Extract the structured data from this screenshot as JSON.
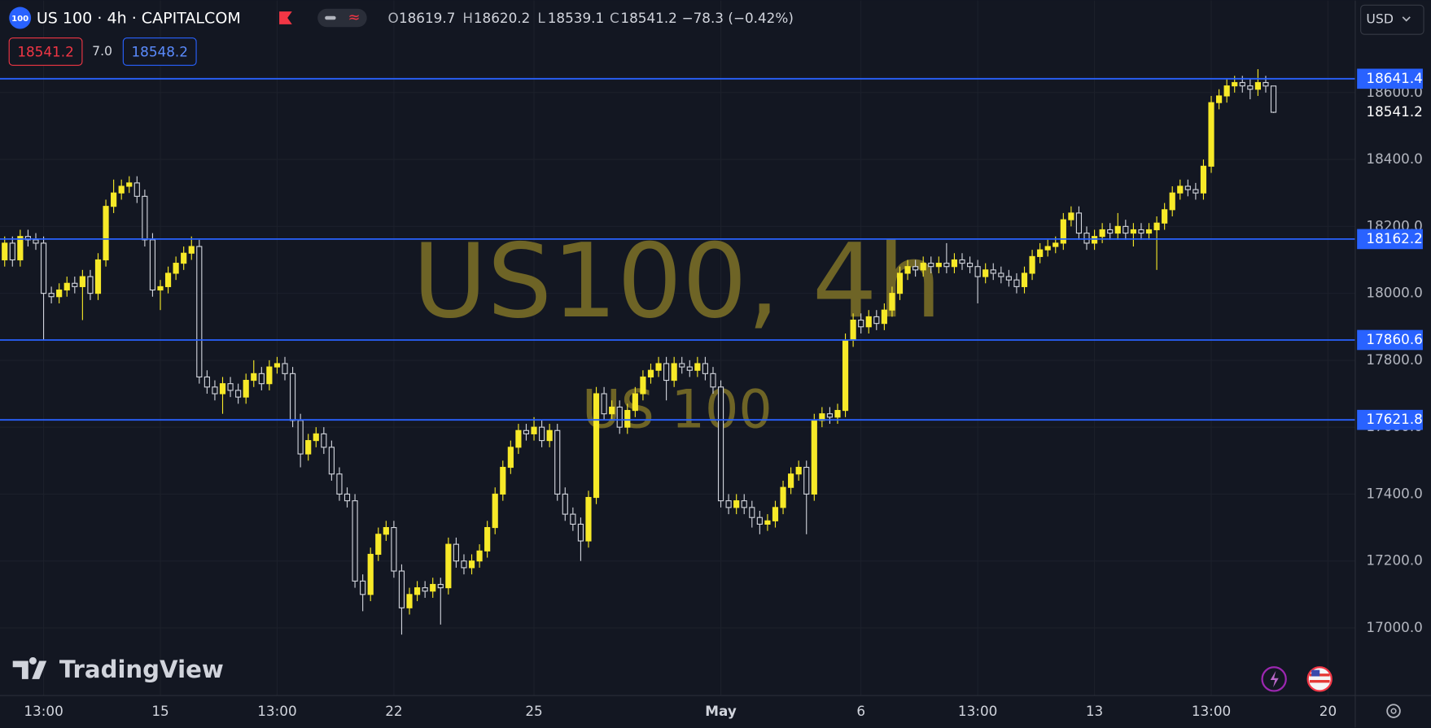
{
  "header": {
    "symbol_badge": "100",
    "symbol_title": "US 100 · 4h · CAPITALCOM",
    "ohlc_labels": [
      "O",
      "H",
      "L",
      "C"
    ],
    "change": "−78.3 (−0.42%)",
    "bid": 18541.2,
    "spread": "7.0",
    "ask": 18548.2,
    "currency": "USD",
    "brand": "TradingView"
  },
  "chart_data": {
    "type": "candlestick",
    "watermark_title": "US100, 4h",
    "watermark_subtitle": "US 100",
    "up_color": "#f7e928",
    "down_color": "#d1d4dc",
    "hline_color": "#2962ff",
    "grid": true,
    "open": [
      18100,
      18150,
      18100,
      18170,
      18160,
      18150,
      18000,
      17990,
      18010,
      18030,
      18020,
      18050,
      18000,
      18100,
      18260,
      18300,
      18320,
      18330,
      18290,
      18160,
      18010,
      18020,
      18060,
      18090,
      18120,
      18140,
      17750,
      17720,
      17700,
      17730,
      17710,
      17690,
      17740,
      17760,
      17730,
      17780,
      17790,
      17760,
      17620,
      17520,
      17560,
      17580,
      17540,
      17460,
      17400,
      17380,
      17140,
      17100,
      17220,
      17280,
      17300,
      17170,
      17060,
      17100,
      17120,
      17110,
      17130,
      17120,
      17250,
      17200,
      17180,
      17200,
      17230,
      17300,
      17400,
      17480,
      17540,
      17590,
      17580,
      17600,
      17560,
      17590,
      17400,
      17340,
      17310,
      17260,
      17390,
      17700,
      17640,
      17660,
      17600,
      17650,
      17700,
      17750,
      17770,
      17790,
      17740,
      17790,
      17780,
      17770,
      17790,
      17760,
      17720,
      17380,
      17360,
      17380,
      17360,
      17330,
      17310,
      17320,
      17360,
      17420,
      17460,
      17480,
      17400,
      17620,
      17640,
      17630,
      17650,
      17860,
      17920,
      17900,
      17930,
      17910,
      17950,
      18000,
      18060,
      18080,
      18070,
      18090,
      18080,
      18090,
      18080,
      18100,
      18090,
      18080,
      18050,
      18070,
      18060,
      18050,
      18040,
      18020,
      18060,
      18110,
      18130,
      18140,
      18150,
      18220,
      18240,
      18180,
      18150,
      18170,
      18190,
      18180,
      18200,
      18180,
      18190,
      18180,
      18190,
      18210,
      18250,
      18300,
      18320,
      18310,
      18300,
      18380,
      18570,
      18590,
      18620,
      18630,
      18620,
      18610,
      18630,
      18619.7
    ],
    "high": [
      18170,
      18170,
      18190,
      18190,
      18180,
      18170,
      18020,
      18030,
      18050,
      18050,
      18070,
      18070,
      18120,
      18280,
      18340,
      18340,
      18350,
      18350,
      18310,
      18180,
      18040,
      18080,
      18110,
      18140,
      18170,
      18160,
      17770,
      17740,
      17750,
      17750,
      17730,
      17760,
      17800,
      17780,
      17800,
      17810,
      17810,
      17780,
      17640,
      17580,
      17600,
      17600,
      17560,
      17480,
      17420,
      17400,
      17160,
      17240,
      17300,
      17320,
      17320,
      17190,
      17120,
      17140,
      17140,
      17150,
      17150,
      17270,
      17270,
      17220,
      17220,
      17250,
      17320,
      17420,
      17500,
      17560,
      17610,
      17610,
      17630,
      17620,
      17610,
      17610,
      17420,
      17360,
      17330,
      17410,
      17720,
      17720,
      17680,
      17680,
      17670,
      17720,
      17770,
      17790,
      17810,
      17810,
      17810,
      17810,
      17800,
      17810,
      17810,
      17780,
      17740,
      17400,
      17400,
      17400,
      17380,
      17350,
      17340,
      17380,
      17440,
      17480,
      17500,
      17500,
      17640,
      17660,
      17660,
      17670,
      17880,
      17940,
      17940,
      17950,
      17950,
      17970,
      18020,
      18080,
      18100,
      18100,
      18110,
      18110,
      18110,
      18150,
      18120,
      18120,
      18110,
      18100,
      18090,
      18090,
      18080,
      18070,
      18060,
      18080,
      18130,
      18150,
      18160,
      18170,
      18240,
      18260,
      18260,
      18200,
      18190,
      18210,
      18210,
      18240,
      18220,
      18210,
      18210,
      18210,
      18230,
      18270,
      18320,
      18340,
      18340,
      18330,
      18400,
      18590,
      18610,
      18640,
      18650,
      18650,
      18640,
      18670,
      18650,
      18620.2
    ],
    "low": [
      18080,
      18080,
      18080,
      18140,
      18130,
      17860,
      17970,
      17970,
      17990,
      18000,
      17920,
      17980,
      17980,
      18080,
      18240,
      18280,
      18300,
      18270,
      18140,
      17990,
      17950,
      18000,
      18040,
      18070,
      18100,
      17730,
      17700,
      17680,
      17640,
      17690,
      17670,
      17670,
      17720,
      17710,
      17710,
      17760,
      17740,
      17600,
      17480,
      17500,
      17540,
      17520,
      17440,
      17380,
      17360,
      17120,
      17050,
      17080,
      17200,
      17260,
      17150,
      16980,
      17040,
      17080,
      17090,
      17090,
      17010,
      17100,
      17180,
      17160,
      17160,
      17180,
      17210,
      17280,
      17380,
      17460,
      17520,
      17560,
      17560,
      17540,
      17540,
      17380,
      17320,
      17290,
      17200,
      17240,
      17370,
      17620,
      17620,
      17580,
      17580,
      17630,
      17680,
      17730,
      17750,
      17680,
      17720,
      17760,
      17750,
      17750,
      17740,
      17700,
      17360,
      17340,
      17340,
      17340,
      17300,
      17280,
      17290,
      17300,
      17340,
      17400,
      17440,
      17280,
      17380,
      17600,
      17610,
      17610,
      17630,
      17840,
      17880,
      17880,
      17890,
      17890,
      17930,
      17980,
      18040,
      18050,
      18050,
      18060,
      18060,
      18060,
      18060,
      18070,
      18060,
      17970,
      18030,
      18040,
      18030,
      18020,
      18000,
      18000,
      18040,
      18090,
      18110,
      18120,
      18130,
      18200,
      18160,
      18130,
      18130,
      18150,
      18160,
      18160,
      18160,
      18140,
      18160,
      18160,
      18070,
      18190,
      18230,
      18280,
      18290,
      18280,
      18280,
      18360,
      18550,
      18570,
      18600,
      18600,
      18580,
      18590,
      18600,
      18539.1
    ],
    "close": [
      18150,
      18100,
      18170,
      18160,
      18150,
      18000,
      17990,
      18010,
      18030,
      18020,
      18050,
      18000,
      18100,
      18260,
      18300,
      18320,
      18330,
      18290,
      18160,
      18010,
      18020,
      18060,
      18090,
      18120,
      18140,
      17750,
      17720,
      17700,
      17730,
      17710,
      17690,
      17740,
      17760,
      17730,
      17780,
      17790,
      17760,
      17620,
      17520,
      17560,
      17580,
      17540,
      17460,
      17400,
      17380,
      17140,
      17100,
      17220,
      17280,
      17300,
      17170,
      17060,
      17100,
      17120,
      17110,
      17130,
      17120,
      17250,
      17200,
      17180,
      17200,
      17230,
      17300,
      17400,
      17480,
      17540,
      17590,
      17580,
      17600,
      17560,
      17590,
      17400,
      17340,
      17310,
      17260,
      17390,
      17700,
      17640,
      17660,
      17600,
      17650,
      17700,
      17750,
      17770,
      17790,
      17740,
      17790,
      17780,
      17770,
      17790,
      17760,
      17720,
      17380,
      17360,
      17380,
      17360,
      17330,
      17310,
      17320,
      17360,
      17420,
      17460,
      17480,
      17400,
      17620,
      17640,
      17630,
      17650,
      17860,
      17920,
      17900,
      17930,
      17910,
      17950,
      18000,
      18060,
      18080,
      18070,
      18090,
      18080,
      18090,
      18080,
      18100,
      18090,
      18080,
      18050,
      18070,
      18060,
      18050,
      18040,
      18020,
      18060,
      18110,
      18130,
      18140,
      18150,
      18220,
      18240,
      18180,
      18150,
      18170,
      18190,
      18180,
      18200,
      18180,
      18190,
      18180,
      18190,
      18210,
      18250,
      18300,
      18320,
      18310,
      18300,
      18380,
      18570,
      18590,
      18620,
      18630,
      18620,
      18610,
      18630,
      18619.7,
      18541.2
    ],
    "xlim": [
      -0.6,
      173.5
    ],
    "xticks": [
      {
        "value": 5,
        "label": "13:00"
      },
      {
        "value": 20,
        "label": "15"
      },
      {
        "value": 35,
        "label": "13:00"
      },
      {
        "value": 50,
        "label": "22"
      },
      {
        "value": 68,
        "label": "25"
      },
      {
        "value": 92,
        "label": "May",
        "bold": true
      },
      {
        "value": 110,
        "label": "6"
      },
      {
        "value": 125,
        "label": "13:00"
      },
      {
        "value": 140,
        "label": "13"
      },
      {
        "value": 155,
        "label": "13:00"
      },
      {
        "value": 170,
        "label": "20"
      }
    ],
    "ylim": [
      16798,
      18875
    ],
    "yticks": [
      {
        "value": 17000,
        "label": "17000.0"
      },
      {
        "value": 17200,
        "label": "17200.0"
      },
      {
        "value": 17400,
        "label": "17400.0"
      },
      {
        "value": 17600,
        "label": "17600.0"
      },
      {
        "value": 17800,
        "label": "17800.0"
      },
      {
        "value": 18000,
        "label": "18000.0"
      },
      {
        "value": 18200,
        "label": "18200.0"
      },
      {
        "value": 18400,
        "label": "18400.0"
      },
      {
        "value": 18600,
        "label": "18600.0"
      }
    ],
    "hlines": [
      18641.4,
      18162.2,
      17860.6,
      17621.8
    ]
  }
}
